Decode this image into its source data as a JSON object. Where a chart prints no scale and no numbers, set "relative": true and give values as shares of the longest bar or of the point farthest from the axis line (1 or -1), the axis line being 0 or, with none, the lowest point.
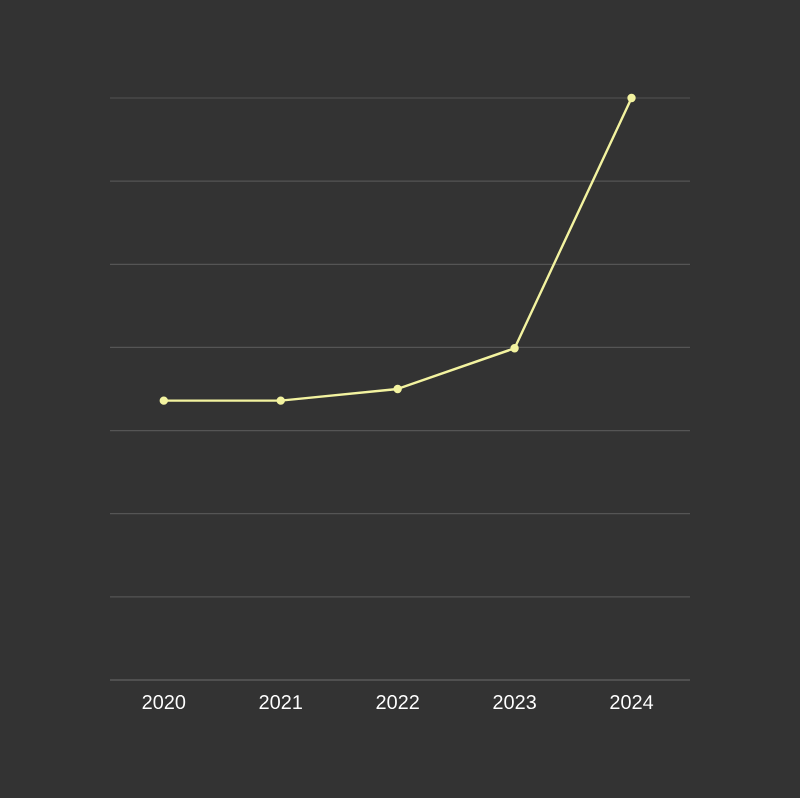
{
  "chart_data": {
    "type": "line",
    "relative": true,
    "categories": [
      "2020",
      "2021",
      "2022",
      "2023",
      "2024"
    ],
    "series": [
      {
        "color": "#f3f3a0",
        "values": [
          0.48,
          0.48,
          0.5,
          0.57,
          1.0
        ]
      }
    ],
    "grid": "y",
    "marker": "circle",
    "line_style": "solid"
  }
}
